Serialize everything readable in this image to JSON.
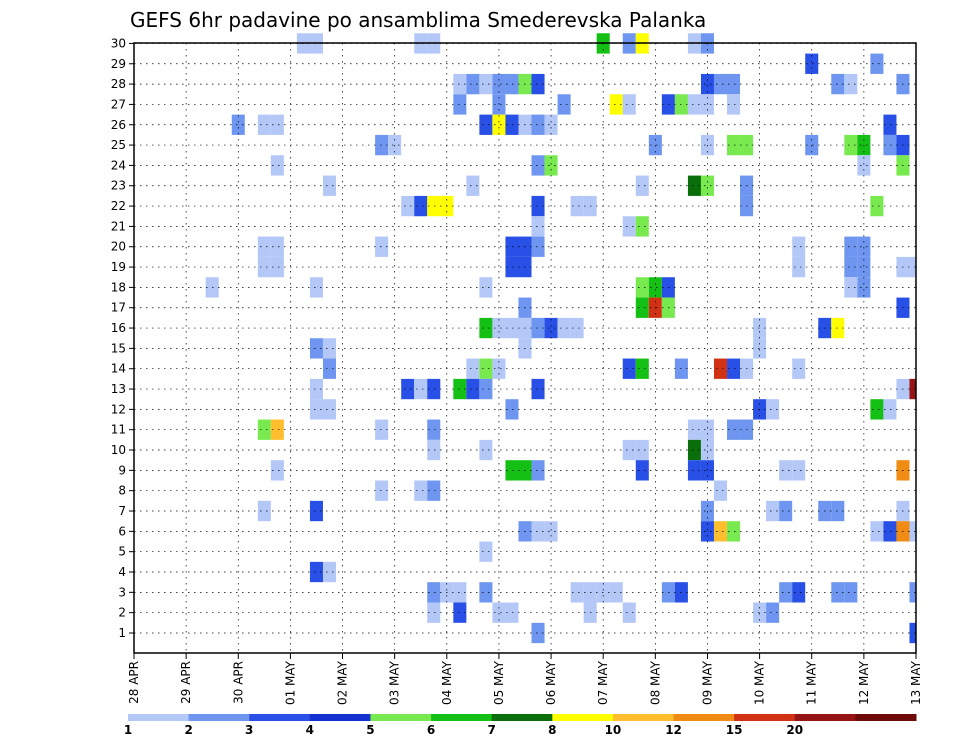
{
  "chart_data": {
    "type": "heatmap",
    "title": "GEFS 6hr padavine po ansamblima Smederevska Palanka",
    "y_ticks": [
      "1",
      "2",
      "3",
      "4",
      "5",
      "6",
      "7",
      "8",
      "9",
      "10",
      "11",
      "12",
      "13",
      "14",
      "15",
      "16",
      "17",
      "18",
      "19",
      "20",
      "21",
      "22",
      "23",
      "24",
      "25",
      "26",
      "27",
      "28",
      "29",
      "30"
    ],
    "x_ticks": [
      "28 APR",
      "29 APR",
      "30 APR",
      "01 MAY",
      "02 MAY",
      "03 MAY",
      "04 MAY",
      "05 MAY",
      "06 MAY",
      "07 MAY",
      "08 MAY",
      "09 MAY",
      "10 MAY",
      "11 MAY",
      "12 MAY",
      "13 MAY"
    ],
    "y_range": [
      1,
      30
    ],
    "time_steps": 61,
    "grid": true,
    "colorbar": {
      "labels": [
        "1",
        "2",
        "3",
        "4",
        "5",
        "6",
        "7",
        "8",
        "10",
        "12",
        "15",
        "20"
      ],
      "colors": [
        "#b4c8f8",
        "#6e96f0",
        "#2850e6",
        "#1432d2",
        "#78ea50",
        "#14c014",
        "#0a6e0a",
        "#ffff00",
        "#ffbe2d",
        "#f08c14",
        "#d23214",
        "#961414",
        "#6e0a0a"
      ]
    },
    "cells": [
      {
        "t": 13,
        "m": 30,
        "c": 0
      },
      {
        "t": 14,
        "m": 30,
        "c": 0
      },
      {
        "t": 22,
        "m": 30,
        "c": 0
      },
      {
        "t": 23,
        "m": 30,
        "c": 0
      },
      {
        "t": 36,
        "m": 30,
        "c": 5
      },
      {
        "t": 38,
        "m": 30,
        "c": 1
      },
      {
        "t": 39,
        "m": 30,
        "c": 7
      },
      {
        "t": 43,
        "m": 30,
        "c": 0
      },
      {
        "t": 44,
        "m": 30,
        "c": 1
      },
      {
        "t": 52,
        "m": 29,
        "c": 2
      },
      {
        "t": 57,
        "m": 29,
        "c": 1
      },
      {
        "t": 25,
        "m": 28,
        "c": 0
      },
      {
        "t": 26,
        "m": 28,
        "c": 1
      },
      {
        "t": 27,
        "m": 28,
        "c": 0
      },
      {
        "t": 28,
        "m": 28,
        "c": 1
      },
      {
        "t": 29,
        "m": 28,
        "c": 1
      },
      {
        "t": 30,
        "m": 28,
        "c": 4
      },
      {
        "t": 31,
        "m": 28,
        "c": 2
      },
      {
        "t": 44,
        "m": 28,
        "c": 2
      },
      {
        "t": 45,
        "m": 28,
        "c": 1
      },
      {
        "t": 46,
        "m": 28,
        "c": 1
      },
      {
        "t": 54,
        "m": 28,
        "c": 1
      },
      {
        "t": 55,
        "m": 28,
        "c": 0
      },
      {
        "t": 59,
        "m": 28,
        "c": 1
      },
      {
        "t": 25,
        "m": 27,
        "c": 1
      },
      {
        "t": 28,
        "m": 27,
        "c": 1
      },
      {
        "t": 33,
        "m": 27,
        "c": 1
      },
      {
        "t": 37,
        "m": 27,
        "c": 7
      },
      {
        "t": 38,
        "m": 27,
        "c": 0
      },
      {
        "t": 41,
        "m": 27,
        "c": 2
      },
      {
        "t": 42,
        "m": 27,
        "c": 4
      },
      {
        "t": 43,
        "m": 27,
        "c": 0
      },
      {
        "t": 44,
        "m": 27,
        "c": 0
      },
      {
        "t": 46,
        "m": 27,
        "c": 0
      },
      {
        "t": 8,
        "m": 26,
        "c": 1
      },
      {
        "t": 10,
        "m": 26,
        "c": 0
      },
      {
        "t": 11,
        "m": 26,
        "c": 0
      },
      {
        "t": 27,
        "m": 26,
        "c": 2
      },
      {
        "t": 28,
        "m": 26,
        "c": 7
      },
      {
        "t": 29,
        "m": 26,
        "c": 2
      },
      {
        "t": 30,
        "m": 26,
        "c": 0
      },
      {
        "t": 31,
        "m": 26,
        "c": 1
      },
      {
        "t": 32,
        "m": 26,
        "c": 0
      },
      {
        "t": 58,
        "m": 26,
        "c": 2
      },
      {
        "t": 19,
        "m": 25,
        "c": 1
      },
      {
        "t": 20,
        "m": 25,
        "c": 0
      },
      {
        "t": 40,
        "m": 25,
        "c": 1
      },
      {
        "t": 44,
        "m": 25,
        "c": 0
      },
      {
        "t": 46,
        "m": 25,
        "c": 4
      },
      {
        "t": 47,
        "m": 25,
        "c": 4
      },
      {
        "t": 52,
        "m": 25,
        "c": 1
      },
      {
        "t": 55,
        "m": 25,
        "c": 4
      },
      {
        "t": 56,
        "m": 25,
        "c": 5
      },
      {
        "t": 58,
        "m": 25,
        "c": 1
      },
      {
        "t": 59,
        "m": 25,
        "c": 2
      },
      {
        "t": 11,
        "m": 24,
        "c": 0
      },
      {
        "t": 31,
        "m": 24,
        "c": 1
      },
      {
        "t": 32,
        "m": 24,
        "c": 4
      },
      {
        "t": 56,
        "m": 24,
        "c": 0
      },
      {
        "t": 59,
        "m": 24,
        "c": 4
      },
      {
        "t": 15,
        "m": 23,
        "c": 0
      },
      {
        "t": 26,
        "m": 23,
        "c": 0
      },
      {
        "t": 39,
        "m": 23,
        "c": 0
      },
      {
        "t": 43,
        "m": 23,
        "c": 6
      },
      {
        "t": 44,
        "m": 23,
        "c": 4
      },
      {
        "t": 47,
        "m": 23,
        "c": 1
      },
      {
        "t": 21,
        "m": 22,
        "c": 0
      },
      {
        "t": 22,
        "m": 22,
        "c": 2
      },
      {
        "t": 23,
        "m": 22,
        "c": 7
      },
      {
        "t": 24,
        "m": 22,
        "c": 7
      },
      {
        "t": 31,
        "m": 22,
        "c": 2
      },
      {
        "t": 34,
        "m": 22,
        "c": 0
      },
      {
        "t": 35,
        "m": 22,
        "c": 0
      },
      {
        "t": 47,
        "m": 22,
        "c": 1
      },
      {
        "t": 57,
        "m": 22,
        "c": 4
      },
      {
        "t": 31,
        "m": 21,
        "c": 0
      },
      {
        "t": 38,
        "m": 21,
        "c": 0
      },
      {
        "t": 39,
        "m": 21,
        "c": 4
      },
      {
        "t": 10,
        "m": 20,
        "c": 0
      },
      {
        "t": 11,
        "m": 20,
        "c": 0
      },
      {
        "t": 19,
        "m": 20,
        "c": 0
      },
      {
        "t": 29,
        "m": 20,
        "c": 2
      },
      {
        "t": 30,
        "m": 20,
        "c": 2
      },
      {
        "t": 31,
        "m": 20,
        "c": 1
      },
      {
        "t": 51,
        "m": 20,
        "c": 0
      },
      {
        "t": 55,
        "m": 20,
        "c": 1
      },
      {
        "t": 56,
        "m": 20,
        "c": 1
      },
      {
        "t": 10,
        "m": 19,
        "c": 0
      },
      {
        "t": 11,
        "m": 19,
        "c": 0
      },
      {
        "t": 29,
        "m": 19,
        "c": 2
      },
      {
        "t": 30,
        "m": 19,
        "c": 2
      },
      {
        "t": 51,
        "m": 19,
        "c": 0
      },
      {
        "t": 55,
        "m": 19,
        "c": 1
      },
      {
        "t": 56,
        "m": 19,
        "c": 1
      },
      {
        "t": 59,
        "m": 19,
        "c": 0
      },
      {
        "t": 60,
        "m": 19,
        "c": 0
      },
      {
        "t": 6,
        "m": 18,
        "c": 0
      },
      {
        "t": 14,
        "m": 18,
        "c": 0
      },
      {
        "t": 27,
        "m": 18,
        "c": 0
      },
      {
        "t": 39,
        "m": 18,
        "c": 4
      },
      {
        "t": 40,
        "m": 18,
        "c": 5
      },
      {
        "t": 41,
        "m": 18,
        "c": 2
      },
      {
        "t": 55,
        "m": 18,
        "c": 0
      },
      {
        "t": 56,
        "m": 18,
        "c": 1
      },
      {
        "t": 30,
        "m": 17,
        "c": 1
      },
      {
        "t": 39,
        "m": 17,
        "c": 5
      },
      {
        "t": 40,
        "m": 17,
        "c": 10
      },
      {
        "t": 41,
        "m": 17,
        "c": 4
      },
      {
        "t": 59,
        "m": 17,
        "c": 2
      },
      {
        "t": 27,
        "m": 16,
        "c": 5
      },
      {
        "t": 28,
        "m": 16,
        "c": 0
      },
      {
        "t": 29,
        "m": 16,
        "c": 0
      },
      {
        "t": 30,
        "m": 16,
        "c": 0
      },
      {
        "t": 31,
        "m": 16,
        "c": 1
      },
      {
        "t": 32,
        "m": 16,
        "c": 2
      },
      {
        "t": 33,
        "m": 16,
        "c": 0
      },
      {
        "t": 34,
        "m": 16,
        "c": 0
      },
      {
        "t": 48,
        "m": 16,
        "c": 0
      },
      {
        "t": 53,
        "m": 16,
        "c": 2
      },
      {
        "t": 54,
        "m": 16,
        "c": 7
      },
      {
        "t": 14,
        "m": 15,
        "c": 1
      },
      {
        "t": 15,
        "m": 15,
        "c": 0
      },
      {
        "t": 30,
        "m": 15,
        "c": 0
      },
      {
        "t": 48,
        "m": 15,
        "c": 0
      },
      {
        "t": 15,
        "m": 14,
        "c": 1
      },
      {
        "t": 26,
        "m": 14,
        "c": 0
      },
      {
        "t": 27,
        "m": 14,
        "c": 4
      },
      {
        "t": 28,
        "m": 14,
        "c": 0
      },
      {
        "t": 38,
        "m": 14,
        "c": 2
      },
      {
        "t": 39,
        "m": 14,
        "c": 5
      },
      {
        "t": 42,
        "m": 14,
        "c": 1
      },
      {
        "t": 45,
        "m": 14,
        "c": 10
      },
      {
        "t": 46,
        "m": 14,
        "c": 2
      },
      {
        "t": 47,
        "m": 14,
        "c": 0
      },
      {
        "t": 51,
        "m": 14,
        "c": 0
      },
      {
        "t": 14,
        "m": 13,
        "c": 0
      },
      {
        "t": 21,
        "m": 13,
        "c": 2
      },
      {
        "t": 22,
        "m": 13,
        "c": 0
      },
      {
        "t": 23,
        "m": 13,
        "c": 2
      },
      {
        "t": 25,
        "m": 13,
        "c": 5
      },
      {
        "t": 26,
        "m": 13,
        "c": 2
      },
      {
        "t": 27,
        "m": 13,
        "c": 1
      },
      {
        "t": 31,
        "m": 13,
        "c": 2
      },
      {
        "t": 59,
        "m": 13,
        "c": 0
      },
      {
        "t": 60,
        "m": 13,
        "c": 11
      },
      {
        "t": 14,
        "m": 12,
        "c": 0
      },
      {
        "t": 15,
        "m": 12,
        "c": 0
      },
      {
        "t": 29,
        "m": 12,
        "c": 1
      },
      {
        "t": 48,
        "m": 12,
        "c": 2
      },
      {
        "t": 49,
        "m": 12,
        "c": 0
      },
      {
        "t": 57,
        "m": 12,
        "c": 5
      },
      {
        "t": 58,
        "m": 12,
        "c": 0
      },
      {
        "t": 10,
        "m": 11,
        "c": 4
      },
      {
        "t": 11,
        "m": 11,
        "c": 8
      },
      {
        "t": 19,
        "m": 11,
        "c": 0
      },
      {
        "t": 23,
        "m": 11,
        "c": 1
      },
      {
        "t": 43,
        "m": 11,
        "c": 0
      },
      {
        "t": 44,
        "m": 11,
        "c": 0
      },
      {
        "t": 46,
        "m": 11,
        "c": 1
      },
      {
        "t": 47,
        "m": 11,
        "c": 1
      },
      {
        "t": 23,
        "m": 10,
        "c": 0
      },
      {
        "t": 27,
        "m": 10,
        "c": 0
      },
      {
        "t": 38,
        "m": 10,
        "c": 0
      },
      {
        "t": 39,
        "m": 10,
        "c": 0
      },
      {
        "t": 43,
        "m": 10,
        "c": 6
      },
      {
        "t": 44,
        "m": 10,
        "c": 0
      },
      {
        "t": 11,
        "m": 9,
        "c": 0
      },
      {
        "t": 29,
        "m": 9,
        "c": 5
      },
      {
        "t": 30,
        "m": 9,
        "c": 5
      },
      {
        "t": 31,
        "m": 9,
        "c": 1
      },
      {
        "t": 39,
        "m": 9,
        "c": 2
      },
      {
        "t": 43,
        "m": 9,
        "c": 2
      },
      {
        "t": 44,
        "m": 9,
        "c": 2
      },
      {
        "t": 50,
        "m": 9,
        "c": 0
      },
      {
        "t": 51,
        "m": 9,
        "c": 0
      },
      {
        "t": 59,
        "m": 9,
        "c": 9
      },
      {
        "t": 19,
        "m": 8,
        "c": 0
      },
      {
        "t": 22,
        "m": 8,
        "c": 0
      },
      {
        "t": 23,
        "m": 8,
        "c": 1
      },
      {
        "t": 45,
        "m": 8,
        "c": 0
      },
      {
        "t": 10,
        "m": 7,
        "c": 0
      },
      {
        "t": 14,
        "m": 7,
        "c": 2
      },
      {
        "t": 44,
        "m": 7,
        "c": 1
      },
      {
        "t": 49,
        "m": 7,
        "c": 0
      },
      {
        "t": 50,
        "m": 7,
        "c": 1
      },
      {
        "t": 53,
        "m": 7,
        "c": 1
      },
      {
        "t": 54,
        "m": 7,
        "c": 1
      },
      {
        "t": 59,
        "m": 7,
        "c": 0
      },
      {
        "t": 30,
        "m": 6,
        "c": 1
      },
      {
        "t": 31,
        "m": 6,
        "c": 0
      },
      {
        "t": 32,
        "m": 6,
        "c": 0
      },
      {
        "t": 44,
        "m": 6,
        "c": 2
      },
      {
        "t": 45,
        "m": 6,
        "c": 8
      },
      {
        "t": 46,
        "m": 6,
        "c": 4
      },
      {
        "t": 57,
        "m": 6,
        "c": 0
      },
      {
        "t": 58,
        "m": 6,
        "c": 2
      },
      {
        "t": 59,
        "m": 6,
        "c": 9
      },
      {
        "t": 60,
        "m": 6,
        "c": 0
      },
      {
        "t": 27,
        "m": 5,
        "c": 0
      },
      {
        "t": 14,
        "m": 4,
        "c": 2
      },
      {
        "t": 15,
        "m": 4,
        "c": 0
      },
      {
        "t": 23,
        "m": 3,
        "c": 1
      },
      {
        "t": 24,
        "m": 3,
        "c": 0
      },
      {
        "t": 25,
        "m": 3,
        "c": 0
      },
      {
        "t": 27,
        "m": 3,
        "c": 1
      },
      {
        "t": 34,
        "m": 3,
        "c": 0
      },
      {
        "t": 35,
        "m": 3,
        "c": 0
      },
      {
        "t": 36,
        "m": 3,
        "c": 0
      },
      {
        "t": 37,
        "m": 3,
        "c": 0
      },
      {
        "t": 41,
        "m": 3,
        "c": 1
      },
      {
        "t": 42,
        "m": 3,
        "c": 2
      },
      {
        "t": 50,
        "m": 3,
        "c": 1
      },
      {
        "t": 51,
        "m": 3,
        "c": 2
      },
      {
        "t": 54,
        "m": 3,
        "c": 1
      },
      {
        "t": 55,
        "m": 3,
        "c": 1
      },
      {
        "t": 60,
        "m": 3,
        "c": 1
      },
      {
        "t": 23,
        "m": 2,
        "c": 0
      },
      {
        "t": 25,
        "m": 2,
        "c": 2
      },
      {
        "t": 28,
        "m": 2,
        "c": 0
      },
      {
        "t": 29,
        "m": 2,
        "c": 0
      },
      {
        "t": 35,
        "m": 2,
        "c": 0
      },
      {
        "t": 38,
        "m": 2,
        "c": 0
      },
      {
        "t": 48,
        "m": 2,
        "c": 0
      },
      {
        "t": 49,
        "m": 2,
        "c": 1
      },
      {
        "t": 31,
        "m": 1,
        "c": 1
      },
      {
        "t": 60,
        "m": 1,
        "c": 2
      }
    ]
  }
}
